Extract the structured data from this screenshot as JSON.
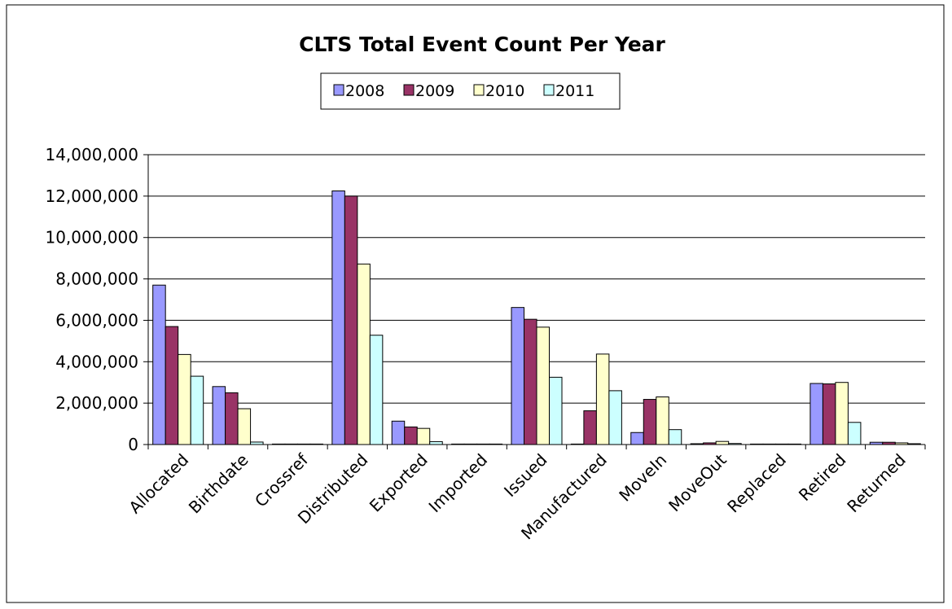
{
  "chart_data": {
    "type": "bar",
    "title": "CLTS Total Event Count Per Year",
    "xlabel": "",
    "ylabel": "",
    "ylim": [
      0,
      14000000
    ],
    "yticks": [
      0,
      2000000,
      4000000,
      6000000,
      8000000,
      10000000,
      12000000,
      14000000
    ],
    "ytick_labels": [
      "0",
      "2,000,000",
      "4,000,000",
      "6,000,000",
      "8,000,000",
      "10,000,000",
      "12,000,000",
      "14,000,000"
    ],
    "grid": true,
    "legend_position": "top-center",
    "categories": [
      "Allocated",
      "Birthdate",
      "Crossref",
      "Distributed",
      "Exported",
      "Imported",
      "Issued",
      "Manufactured",
      "MoveIn",
      "MoveOut",
      "Replaced",
      "Retired",
      "Returned"
    ],
    "series": [
      {
        "name": "2008",
        "color": "#9999ff",
        "values": [
          7700000,
          2800000,
          10000,
          12250000,
          1130000,
          10000,
          6620000,
          10000,
          580000,
          40000,
          10000,
          2950000,
          110000
        ]
      },
      {
        "name": "2009",
        "color": "#993366",
        "values": [
          5700000,
          2500000,
          10000,
          12000000,
          850000,
          10000,
          6050000,
          1630000,
          2180000,
          80000,
          10000,
          2930000,
          110000
        ]
      },
      {
        "name": "2010",
        "color": "#ffffcc",
        "values": [
          4350000,
          1730000,
          10000,
          8720000,
          780000,
          10000,
          5670000,
          4370000,
          2300000,
          150000,
          10000,
          3000000,
          80000
        ]
      },
      {
        "name": "2011",
        "color": "#ccffff",
        "values": [
          3300000,
          120000,
          10000,
          5280000,
          140000,
          10000,
          3250000,
          2600000,
          720000,
          50000,
          10000,
          1070000,
          40000
        ]
      }
    ]
  }
}
